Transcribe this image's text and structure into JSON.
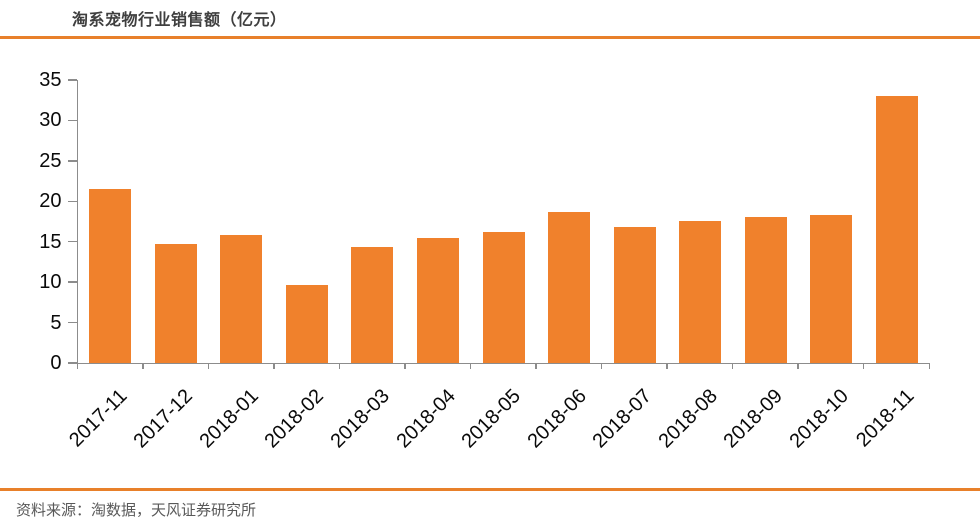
{
  "header": {
    "title": "淘系宠物行业销售额（亿元）"
  },
  "footer": {
    "source": "资料来源：淘数据，天风证券研究所"
  },
  "colors": {
    "bar": "#f0812c",
    "accent_line": "#e8802a",
    "axis": "#8c8c8c",
    "title_text": "#3f3f3f",
    "footer_text": "#595959"
  },
  "chart_data": {
    "type": "bar",
    "title": "淘系宠物行业销售额（亿元）",
    "categories": [
      "2017-11",
      "2017-12",
      "2018-01",
      "2018-02",
      "2018-03",
      "2018-04",
      "2018-05",
      "2018-06",
      "2018-07",
      "2018-08",
      "2018-09",
      "2018-10",
      "2018-11"
    ],
    "values": [
      21.5,
      14.7,
      15.8,
      9.7,
      14.3,
      15.4,
      16.2,
      18.7,
      16.8,
      17.6,
      18.1,
      18.3,
      33.0
    ],
    "xlabel": "",
    "ylabel": "",
    "ylim": [
      0,
      35
    ],
    "yticks": [
      0,
      5,
      10,
      15,
      20,
      25,
      30,
      35
    ],
    "grid": false,
    "legend_position": "none",
    "bar_color": "#f0812c"
  }
}
